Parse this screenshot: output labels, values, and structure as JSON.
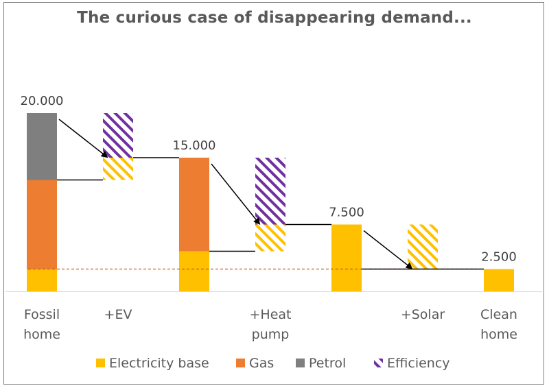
{
  "chart_data": {
    "type": "bar",
    "title": "The curious case of disappearing demand...",
    "ylim": [
      0,
      20000
    ],
    "categories": [
      [
        "Fossil",
        "home"
      ],
      [
        "+EV"
      ],
      [],
      [
        "+Heat",
        "pump"
      ],
      [],
      [
        "+Solar"
      ],
      [
        "Clean",
        "home"
      ]
    ],
    "bars": [
      {
        "segments": [
          {
            "series": "Electricity base",
            "from": 0,
            "to": 2500
          },
          {
            "series": "Gas",
            "from": 2500,
            "to": 12500
          },
          {
            "series": "Petrol",
            "from": 12500,
            "to": 20000
          }
        ],
        "label": "20.000"
      },
      {
        "segments": [
          {
            "series": "Electricity base",
            "from": 12500,
            "to": 15000,
            "hatched": true
          },
          {
            "series": "Efficiency",
            "from": 15000,
            "to": 20000
          }
        ],
        "label": ""
      },
      {
        "segments": [
          {
            "series": "Electricity base",
            "from": 0,
            "to": 4500
          },
          {
            "series": "Gas",
            "from": 4500,
            "to": 15000
          }
        ],
        "label": "15.000"
      },
      {
        "segments": [
          {
            "series": "Electricity base",
            "from": 4500,
            "to": 7500,
            "hatched": true
          },
          {
            "series": "Efficiency",
            "from": 7500,
            "to": 15000
          }
        ],
        "label": ""
      },
      {
        "segments": [
          {
            "series": "Electricity base",
            "from": 0,
            "to": 7500
          }
        ],
        "label": "7.500"
      },
      {
        "segments": [
          {
            "series": "Electricity base",
            "from": 2500,
            "to": 7500,
            "hatched": true
          }
        ],
        "label": ""
      },
      {
        "segments": [
          {
            "series": "Electricity base",
            "from": 0,
            "to": 2500
          }
        ],
        "label": "2.500"
      }
    ],
    "connectors": [
      {
        "from_bar": 0,
        "to_bar": 1,
        "from_value": 12500,
        "to_value": 12500,
        "style": "line"
      },
      {
        "from_bar": 1,
        "to_bar": 2,
        "from_value": 15000,
        "to_value": 15000,
        "style": "line"
      },
      {
        "from_bar": 2,
        "to_bar": 3,
        "from_value": 4500,
        "to_value": 4500,
        "style": "line"
      },
      {
        "from_bar": 3,
        "to_bar": 4,
        "from_value": 7500,
        "to_value": 7500,
        "style": "line"
      },
      {
        "from_bar": 4,
        "to_bar": 6,
        "from_value": 2500,
        "to_value": 2500,
        "style": "line"
      }
    ],
    "arrows": [
      {
        "from_bar": 0,
        "to_bar": 1,
        "from_value": 20000,
        "to_value": 15000
      },
      {
        "from_bar": 2,
        "to_bar": 3,
        "from_value": 15000,
        "to_value": 7500
      },
      {
        "from_bar": 4,
        "to_bar": 5,
        "from_value": 7500,
        "to_value": 2500
      }
    ],
    "reference_line": {
      "value": 2500,
      "style": "dashed",
      "color": "#C55A11"
    },
    "legend": {
      "position": "bottom",
      "items": [
        {
          "name": "Electricity base",
          "color": "#FFC000"
        },
        {
          "name": "Gas",
          "color": "#ED7D31"
        },
        {
          "name": "Petrol",
          "color": "#7F7F7F"
        },
        {
          "name": "Efficiency",
          "color": "#7030A0",
          "hatched": true
        }
      ]
    },
    "colors": {
      "Electricity base": "#FFC000",
      "Gas": "#ED7D31",
      "Petrol": "#7F7F7F",
      "Efficiency": "#7030A0"
    }
  }
}
